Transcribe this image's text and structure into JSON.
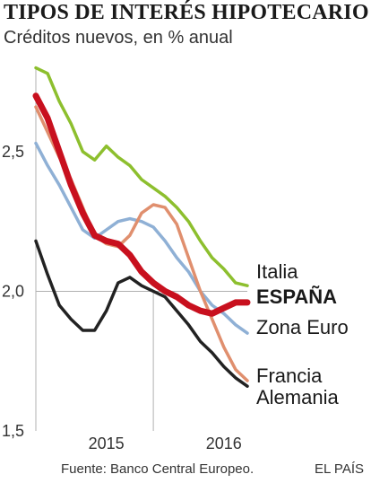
{
  "header": {
    "title": "TIPOS DE INTERÉS HIPOTECARIO",
    "subtitle": "Créditos nuevos, en % anual"
  },
  "footer": {
    "source": "Fuente: Banco Central Europeo.",
    "brand": "EL PAÍS"
  },
  "chart_data": {
    "type": "line",
    "ylim": [
      1.5,
      2.85
    ],
    "xlim": [
      0,
      18
    ],
    "y_ticks": [
      1.5,
      2.0,
      2.5
    ],
    "y_tick_labels": [
      "1,5",
      "2,0",
      "2,5"
    ],
    "x_tick_labels": [
      {
        "label": "2015",
        "at": 6
      },
      {
        "label": "2016",
        "at": 16
      }
    ],
    "year_separator_at": 10,
    "grid": true,
    "series": [
      {
        "name": "Italia",
        "color": "#8dbf2e",
        "bold": false,
        "x": [
          0,
          1,
          2,
          3,
          4,
          5,
          6,
          7,
          8,
          9,
          10,
          11,
          12,
          13,
          14,
          15,
          16,
          17,
          18
        ],
        "values": [
          2.8,
          2.78,
          2.68,
          2.6,
          2.5,
          2.47,
          2.52,
          2.48,
          2.45,
          2.4,
          2.37,
          2.34,
          2.3,
          2.25,
          2.18,
          2.12,
          2.08,
          2.03,
          2.02
        ]
      },
      {
        "name": "ESPAÑA",
        "color": "#c8101e",
        "bold": true,
        "x": [
          0,
          1,
          2,
          3,
          4,
          5,
          6,
          7,
          8,
          9,
          10,
          11,
          12,
          13,
          14,
          15,
          16,
          17,
          18
        ],
        "values": [
          2.7,
          2.62,
          2.5,
          2.38,
          2.28,
          2.2,
          2.18,
          2.17,
          2.13,
          2.07,
          2.03,
          2.0,
          1.98,
          1.95,
          1.93,
          1.92,
          1.94,
          1.96,
          1.96
        ]
      },
      {
        "name": "Zona Euro",
        "color": "#8fb0d5",
        "bold": false,
        "x": [
          0,
          1,
          2,
          3,
          4,
          5,
          6,
          7,
          8,
          9,
          10,
          11,
          12,
          13,
          14,
          15,
          16,
          17,
          18
        ],
        "values": [
          2.53,
          2.45,
          2.38,
          2.3,
          2.22,
          2.19,
          2.22,
          2.25,
          2.26,
          2.25,
          2.23,
          2.18,
          2.12,
          2.07,
          2.0,
          1.95,
          1.92,
          1.88,
          1.85
        ]
      },
      {
        "name": "Francia",
        "color": "#e08f6e",
        "bold": false,
        "x": [
          0,
          1,
          2,
          3,
          4,
          5,
          6,
          7,
          8,
          9,
          10,
          11,
          12,
          13,
          14,
          15,
          16,
          17,
          18
        ],
        "values": [
          2.66,
          2.57,
          2.48,
          2.4,
          2.3,
          2.2,
          2.17,
          2.16,
          2.2,
          2.28,
          2.31,
          2.3,
          2.24,
          2.12,
          2.0,
          1.9,
          1.8,
          1.72,
          1.68
        ]
      },
      {
        "name": "Alemania",
        "color": "#222222",
        "bold": false,
        "x": [
          0,
          1,
          2,
          3,
          4,
          5,
          6,
          7,
          8,
          9,
          10,
          11,
          12,
          13,
          14,
          15,
          16,
          17,
          18
        ],
        "values": [
          2.18,
          2.06,
          1.95,
          1.9,
          1.86,
          1.86,
          1.93,
          2.03,
          2.05,
          2.02,
          2.0,
          1.98,
          1.93,
          1.88,
          1.82,
          1.78,
          1.73,
          1.69,
          1.66
        ]
      }
    ]
  }
}
